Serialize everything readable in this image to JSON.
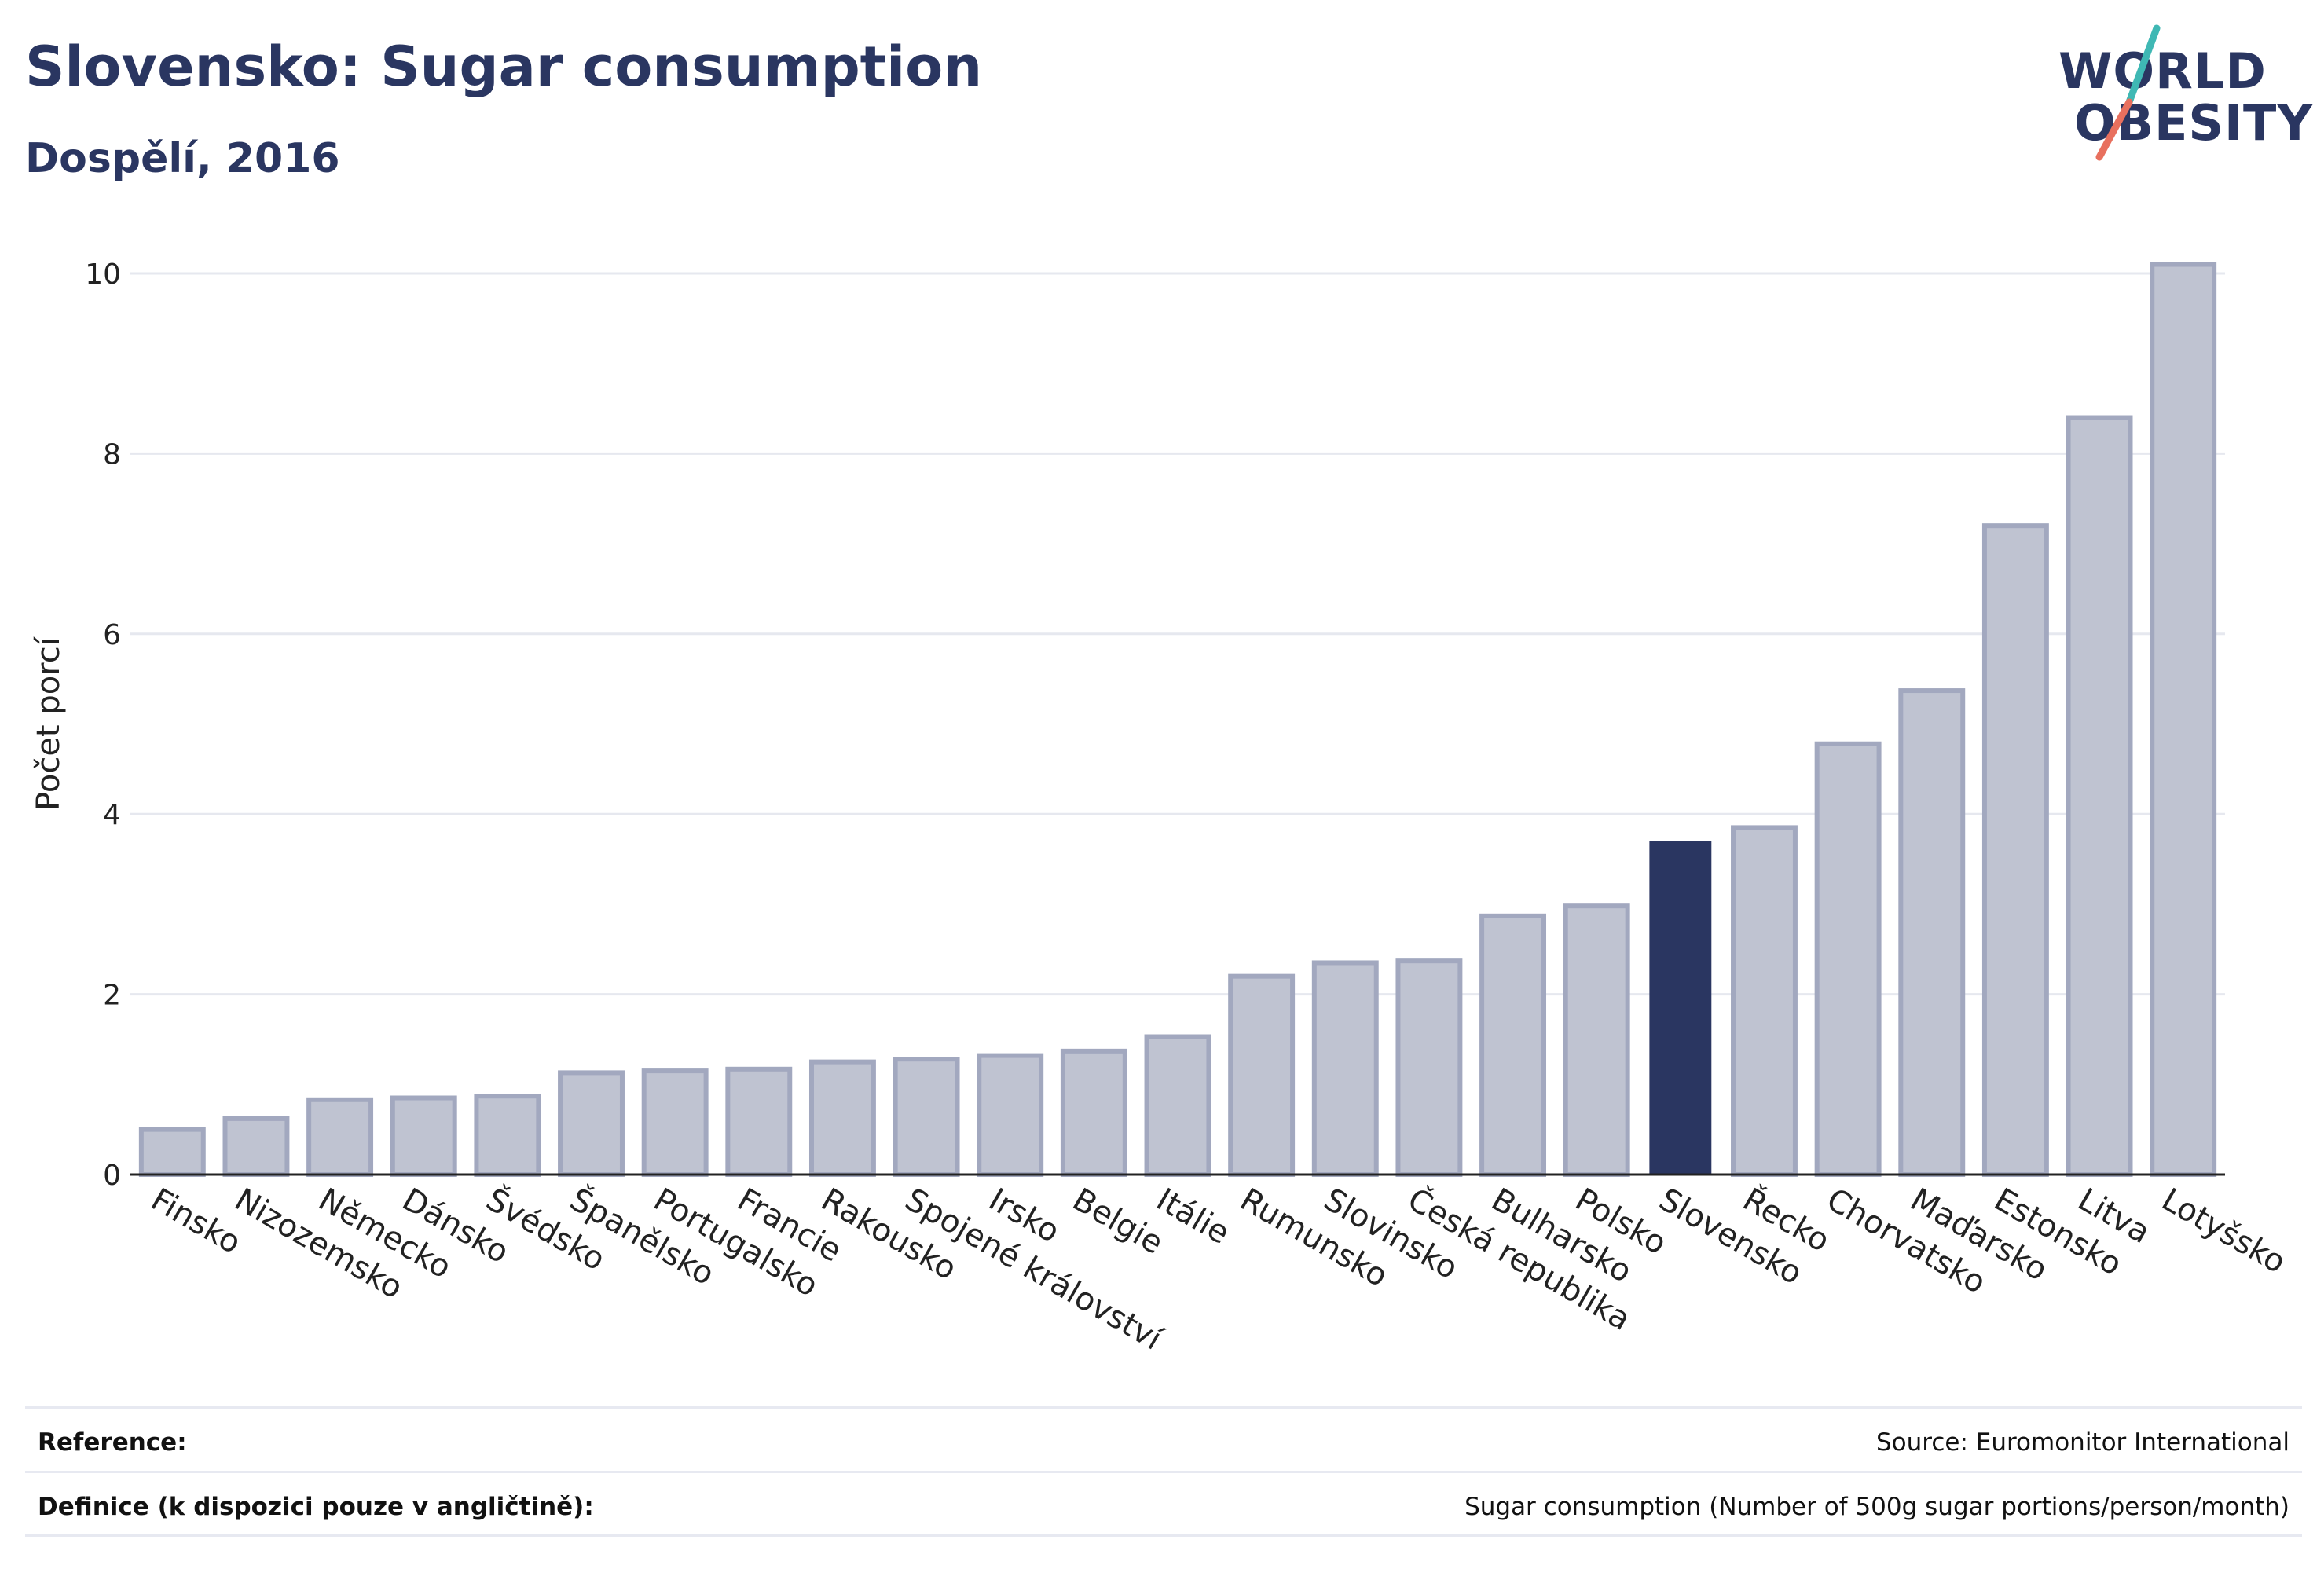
{
  "header": {
    "title": "Slovensko: Sugar consumption",
    "subtitle": "Dospělí, 2016"
  },
  "logo": {
    "line1": "WORLD",
    "line2": "OBESITY",
    "accent_teal": "#3fb8b4",
    "accent_coral": "#e8705e"
  },
  "colors": {
    "bar_default": "#bfc3d1",
    "bar_default_border": "#a2a8bf",
    "bar_highlight": "#2a3661",
    "text": "#2a3661",
    "grid": "#e6e8ef"
  },
  "chart_data": {
    "type": "bar",
    "ylabel": "Počet porcí",
    "ylim": [
      0,
      10.4
    ],
    "yticks": [
      0,
      2,
      4,
      6,
      8,
      10
    ],
    "grid": true,
    "highlight": "Slovensko",
    "categories": [
      "Finsko",
      "Nizozemsko",
      "Německo",
      "Dánsko",
      "Švédsko",
      "Španělsko",
      "Portugalsko",
      "Francie",
      "Rakousko",
      "Spojené království",
      "Irsko",
      "Belgie",
      "Itálie",
      "Rumunsko",
      "Slovinsko",
      "Česká republika",
      "Bulharsko",
      "Polsko",
      "Slovensko",
      "Řecko",
      "Chorvatsko",
      "Maďarsko",
      "Estonsko",
      "Litva",
      "Lotyšsko"
    ],
    "values": [
      0.5,
      0.62,
      0.83,
      0.85,
      0.87,
      1.13,
      1.15,
      1.17,
      1.25,
      1.28,
      1.32,
      1.37,
      1.53,
      2.2,
      2.35,
      2.37,
      2.87,
      2.98,
      3.7,
      3.85,
      4.78,
      5.37,
      7.2,
      8.4,
      10.1
    ]
  },
  "footer": {
    "reference_label": "Reference:",
    "reference_value": "Source: Euromonitor International",
    "definition_label": "Definice (k dispozici pouze v angličtině):",
    "definition_value": "Sugar consumption (Number of 500g sugar portions/person/month)"
  }
}
